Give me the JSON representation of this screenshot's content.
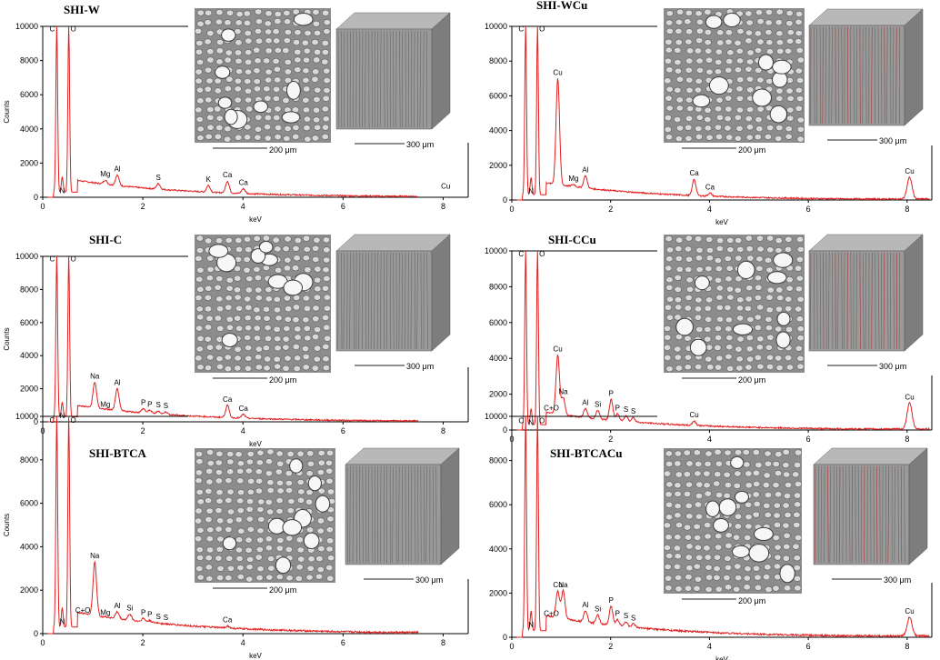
{
  "colors": {
    "spectrum": "#e21f1f",
    "axis": "#000000",
    "micrograph_bg": "#8c8c8c",
    "cube_top": "#b8b8b8",
    "cube_front": "#9a9a9a",
    "cube_side": "#7d7d7d",
    "copper_stain": "#b04040"
  },
  "chart_data": [
    {
      "type": "line",
      "title": "SHI-W",
      "xlabel": "keV",
      "ylabel": "Counts",
      "xlim": [
        0,
        8.5
      ],
      "ylim": [
        0,
        10000
      ],
      "x_ticks": [
        "0",
        "2",
        "4",
        "6",
        "8"
      ],
      "y_ticks": [
        "0",
        "2000",
        "4000",
        "6000",
        "8000",
        "10000"
      ],
      "peaks": [
        {
          "label": "C",
          "x": 0.28,
          "y": 10000
        },
        {
          "label": "N",
          "x": 0.39,
          "y": 1200
        },
        {
          "label": "O",
          "x": 0.52,
          "y": 10000
        },
        {
          "label": "Mg",
          "x": 1.25,
          "y": 1000
        },
        {
          "label": "Al",
          "x": 1.49,
          "y": 1300
        },
        {
          "label": "S",
          "x": 2.31,
          "y": 800
        },
        {
          "label": "K",
          "x": 3.31,
          "y": 700
        },
        {
          "label": "Ca",
          "x": 3.69,
          "y": 950
        },
        {
          "label": "Ca",
          "x": 4.01,
          "y": 500
        },
        {
          "label": "Cu",
          "x": 8.05,
          "y": 300
        }
      ],
      "scale_bars": [
        "200 μm",
        "300 μm"
      ]
    },
    {
      "type": "line",
      "title": "SHI-WCu",
      "xlabel": "keV",
      "ylabel": "",
      "xlim": [
        0,
        8.5
      ],
      "ylim": [
        0,
        10000
      ],
      "x_ticks": [
        "0",
        "2",
        "4",
        "6",
        "8"
      ],
      "y_ticks": [
        "0",
        "2000",
        "4000",
        "6000",
        "8000",
        "10000"
      ],
      "peaks": [
        {
          "label": "C",
          "x": 0.28,
          "y": 10000
        },
        {
          "label": "N",
          "x": 0.39,
          "y": 1300
        },
        {
          "label": "O",
          "x": 0.52,
          "y": 10000
        },
        {
          "label": "Cu",
          "x": 0.93,
          "y": 7000
        },
        {
          "label": "Mg",
          "x": 1.25,
          "y": 900
        },
        {
          "label": "Al",
          "x": 1.49,
          "y": 1400
        },
        {
          "label": "Ca",
          "x": 3.69,
          "y": 1200
        },
        {
          "label": "Ca",
          "x": 4.01,
          "y": 400
        },
        {
          "label": "Cu",
          "x": 8.05,
          "y": 1300
        }
      ],
      "scale_bars": [
        "200 μm",
        "300 μm"
      ]
    },
    {
      "type": "line",
      "title": "SHI-C",
      "xlabel": "keV",
      "ylabel": "Counts",
      "xlim": [
        0,
        8.5
      ],
      "ylim": [
        0,
        10000
      ],
      "x_ticks": [
        "0",
        "2",
        "4",
        "6",
        "8"
      ],
      "y_ticks": [
        "0",
        "2000",
        "4000",
        "6000",
        "8000",
        "10000"
      ],
      "peaks": [
        {
          "label": "C",
          "x": 0.28,
          "y": 10000
        },
        {
          "label": "N",
          "x": 0.39,
          "y": 1200
        },
        {
          "label": "O",
          "x": 0.52,
          "y": 10000
        },
        {
          "label": "Na",
          "x": 1.04,
          "y": 2400
        },
        {
          "label": "Mg",
          "x": 1.25,
          "y": 700
        },
        {
          "label": "Al",
          "x": 1.49,
          "y": 2000
        },
        {
          "label": "P",
          "x": 2.01,
          "y": 800
        },
        {
          "label": "P",
          "x": 2.14,
          "y": 700
        },
        {
          "label": "S",
          "x": 2.31,
          "y": 650
        },
        {
          "label": "S",
          "x": 2.46,
          "y": 600
        },
        {
          "label": "Ca",
          "x": 3.69,
          "y": 1000
        },
        {
          "label": "Ca",
          "x": 4.01,
          "y": 450
        }
      ],
      "scale_bars": [
        "200 μm",
        "300 μm"
      ]
    },
    {
      "type": "line",
      "title": "SHI-CCu",
      "xlabel": "keV",
      "ylabel": "",
      "xlim": [
        0,
        8.5
      ],
      "ylim": [
        0,
        10000
      ],
      "x_ticks": [
        "0",
        "2",
        "4",
        "6",
        "8"
      ],
      "y_ticks": [
        "0",
        "2000",
        "4000",
        "6000",
        "8000",
        "10000"
      ],
      "peaks": [
        {
          "label": "C",
          "x": 0.28,
          "y": 10000
        },
        {
          "label": "N",
          "x": 0.39,
          "y": 1200
        },
        {
          "label": "O",
          "x": 0.52,
          "y": 10000
        },
        {
          "label": "C+O",
          "x": 0.8,
          "y": 900
        },
        {
          "label": "Cu",
          "x": 0.93,
          "y": 4200
        },
        {
          "label": "Na",
          "x": 1.04,
          "y": 1800
        },
        {
          "label": "Al",
          "x": 1.49,
          "y": 1200
        },
        {
          "label": "Si",
          "x": 1.74,
          "y": 1100
        },
        {
          "label": "P",
          "x": 2.01,
          "y": 1700
        },
        {
          "label": "P",
          "x": 2.14,
          "y": 900
        },
        {
          "label": "S",
          "x": 2.31,
          "y": 800
        },
        {
          "label": "S",
          "x": 2.46,
          "y": 700
        },
        {
          "label": "Cu",
          "x": 3.69,
          "y": 500
        },
        {
          "label": "Cu",
          "x": 8.05,
          "y": 1500
        }
      ],
      "scale_bars": [
        "200 μm",
        "300 μm"
      ]
    },
    {
      "type": "line",
      "title": "SHI-BTCA",
      "xlabel": "keV",
      "ylabel": "Counts",
      "xlim": [
        0,
        8.5
      ],
      "ylim": [
        0,
        10000
      ],
      "x_ticks": [
        "0",
        "2",
        "4",
        "6",
        "8"
      ],
      "y_ticks": [
        "0",
        "2000",
        "4000",
        "6000",
        "8000",
        "10000"
      ],
      "peaks": [
        {
          "label": "C",
          "x": 0.28,
          "y": 10000
        },
        {
          "label": "N",
          "x": 0.39,
          "y": 1200
        },
        {
          "label": "O",
          "x": 0.52,
          "y": 10000
        },
        {
          "label": "C+O",
          "x": 0.8,
          "y": 800
        },
        {
          "label": "Na",
          "x": 1.04,
          "y": 3300
        },
        {
          "label": "Mg",
          "x": 1.25,
          "y": 700
        },
        {
          "label": "Al",
          "x": 1.49,
          "y": 1000
        },
        {
          "label": "Si",
          "x": 1.74,
          "y": 900
        },
        {
          "label": "P",
          "x": 2.01,
          "y": 700
        },
        {
          "label": "P",
          "x": 2.14,
          "y": 600
        },
        {
          "label": "S",
          "x": 2.31,
          "y": 500
        },
        {
          "label": "S",
          "x": 2.46,
          "y": 450
        },
        {
          "label": "Ca",
          "x": 3.69,
          "y": 350
        }
      ],
      "scale_bars": [
        "200 μm",
        "300 μm"
      ]
    },
    {
      "type": "line",
      "title": "SHI-BTCACu",
      "xlabel": "keV",
      "ylabel": "",
      "xlim": [
        0,
        8.5
      ],
      "ylim": [
        0,
        10000
      ],
      "x_ticks": [
        "0",
        "2",
        "4",
        "6",
        "8"
      ],
      "y_ticks": [
        "0",
        "2000",
        "4000",
        "6000",
        "8000",
        "10000"
      ],
      "peaks": [
        {
          "label": "C",
          "x": 0.28,
          "y": 10000
        },
        {
          "label": "N",
          "x": 0.39,
          "y": 1200
        },
        {
          "label": "O",
          "x": 0.52,
          "y": 10000
        },
        {
          "label": "C+O",
          "x": 0.8,
          "y": 800
        },
        {
          "label": "Cu",
          "x": 0.93,
          "y": 2100
        },
        {
          "label": "Na",
          "x": 1.04,
          "y": 2100
        },
        {
          "label": "Al",
          "x": 1.49,
          "y": 1200
        },
        {
          "label": "Si",
          "x": 1.74,
          "y": 1000
        },
        {
          "label": "P",
          "x": 2.01,
          "y": 1400
        },
        {
          "label": "P",
          "x": 2.14,
          "y": 800
        },
        {
          "label": "S",
          "x": 2.31,
          "y": 700
        },
        {
          "label": "S",
          "x": 2.46,
          "y": 600
        },
        {
          "label": "Cu",
          "x": 8.05,
          "y": 900
        }
      ],
      "scale_bars": [
        "200 μm",
        "300 μm"
      ]
    }
  ]
}
